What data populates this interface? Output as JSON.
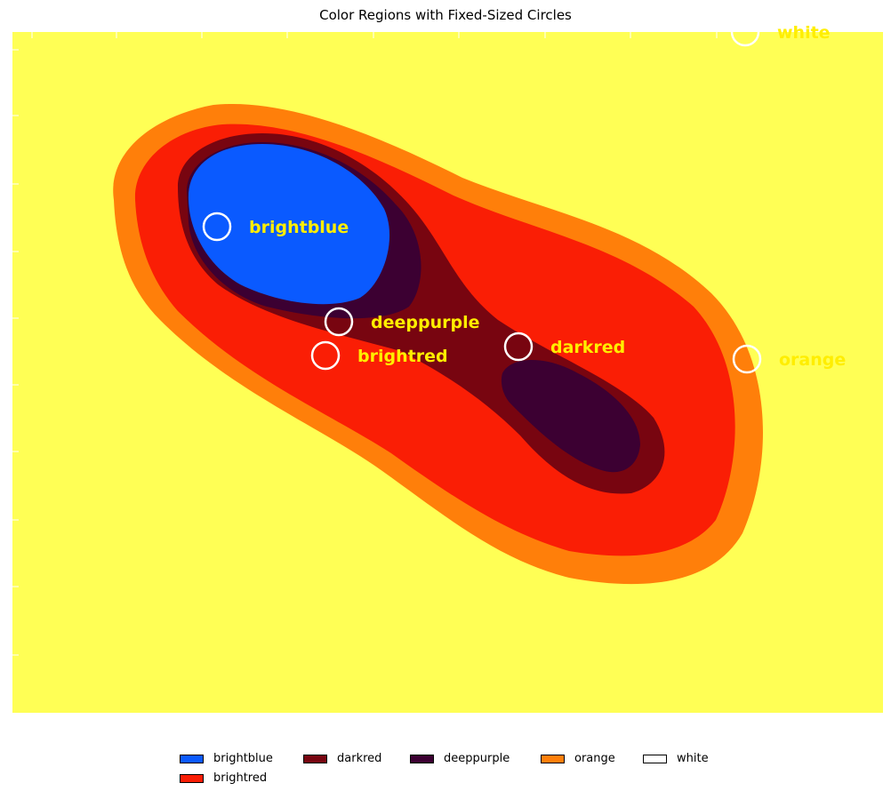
{
  "chart_data": {
    "type": "heatmap",
    "title": "Color Regions with Fixed-Sized Circles",
    "xlabel": "",
    "ylabel": "",
    "grid": false,
    "legend_position": "bottom-center",
    "background_region": "yellow",
    "colors": {
      "yellow": "#ffff55",
      "orange": "#ff7f0a",
      "brightred": "#fa1e05",
      "darkred": "#780510",
      "deeppurple": "#3c0032",
      "brightblue": "#0a5aff",
      "white": "#ffffff",
      "annotation_text": "#ffee00",
      "circle_stroke": "#ffffff"
    },
    "annotations": [
      {
        "label": "brightblue"
      },
      {
        "label": "deeppurple"
      },
      {
        "label": "brightred"
      },
      {
        "label": "darkred"
      },
      {
        "label": "orange"
      },
      {
        "label": "white"
      }
    ],
    "legend": [
      {
        "label": "brightblue",
        "color": "#0a5aff"
      },
      {
        "label": "brightred",
        "color": "#fa1e05"
      },
      {
        "label": "darkred",
        "color": "#780510"
      },
      {
        "label": "deeppurple",
        "color": "#3c0032"
      },
      {
        "label": "orange",
        "color": "#ff7f0a"
      },
      {
        "label": "white",
        "color": "#ffffff"
      }
    ]
  }
}
